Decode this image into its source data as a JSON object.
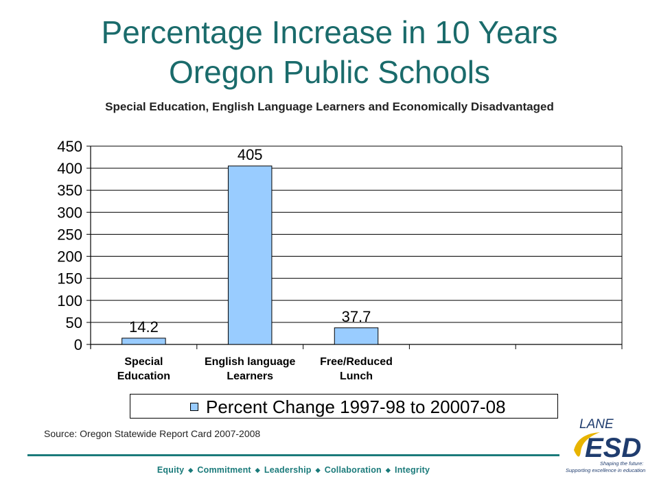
{
  "title_line1": "Percentage Increase in 10 Years",
  "title_line2": "Oregon Public Schools",
  "subtitle": "Special Education, English Language Learners and Economically Disadvantaged",
  "source": "Source: Oregon Statewide Report Card 2007-2008",
  "footer": {
    "items": [
      "Equity",
      "Commitment",
      "Leadership",
      "Collaboration",
      "Integrity"
    ],
    "separator": "◆"
  },
  "logo": {
    "text": "LANE",
    "mark": "ESD",
    "tagline1": "Shaping the future:",
    "tagline2": "Supporting excellence in education"
  },
  "colors": {
    "title": "#1a6b6b",
    "bar": "#99ccff",
    "footer": "#1a7a7a",
    "logo_gold": "#e8b400",
    "logo_blue": "#1f3c6e"
  },
  "chart_data": {
    "type": "bar",
    "categories": [
      [
        "Special",
        "Education"
      ],
      [
        "English language",
        "Learners"
      ],
      [
        "Free/Reduced",
        "Lunch"
      ],
      [],
      []
    ],
    "series": [
      {
        "name": "Percent Change 1997-98 to 20007-08",
        "values": [
          14.2,
          405,
          37.7,
          null,
          null
        ]
      }
    ],
    "data_labels": [
      "14.2",
      "405",
      "37.7",
      "",
      ""
    ],
    "ylim": [
      0,
      450
    ],
    "yticks": [
      0,
      50,
      100,
      150,
      200,
      250,
      300,
      350,
      400,
      450
    ],
    "grid": true,
    "legend": "bottom"
  }
}
